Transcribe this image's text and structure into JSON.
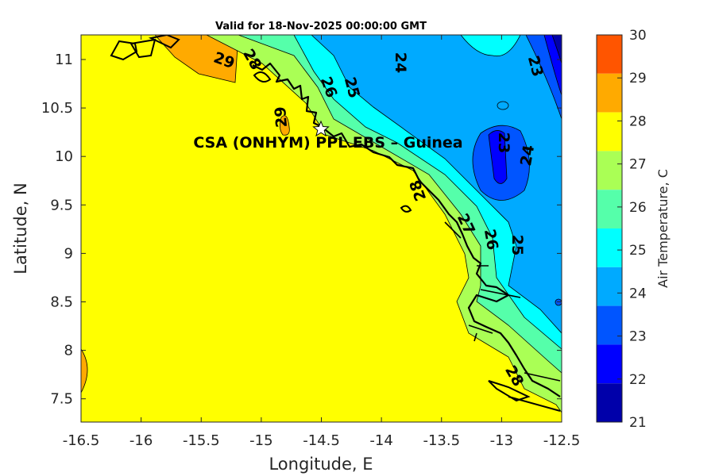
{
  "title": "Valid for 18-Nov-2025 00:00:00 GMT",
  "station_label": "CSA (ONHYM) PPL EBS  – Guinea",
  "chart_data": {
    "type": "heatmap",
    "subtype": "filled-contour-map",
    "title": "Valid for 18-Nov-2025 00:00:00 GMT",
    "xlabel": "Longitude, E",
    "ylabel": "Latitude, N",
    "xlim": [
      -16.5,
      -12.5
    ],
    "ylim": [
      7.26,
      11.25
    ],
    "xticks": [
      "-16.5",
      "-16",
      "-15.5",
      "-15",
      "-14.5",
      "-14",
      "-13.5",
      "-13",
      "-12.5"
    ],
    "yticks": [
      "11",
      "10.5",
      "10",
      "9.5",
      "9",
      "8.5",
      "8",
      "7.5"
    ],
    "colorbar": {
      "label": "Air Temperature, C",
      "range": [
        21,
        30
      ],
      "ticks": [
        "30",
        "29",
        "28",
        "27",
        "26",
        "25",
        "24",
        "23",
        "22",
        "21"
      ],
      "colors": [
        "#ff5500",
        "#ffaa00",
        "#ffff00",
        "#aaff55",
        "#55ffaa",
        "#00ffff",
        "#00aaff",
        "#0055ff",
        "#0000ff",
        "#0000aa"
      ]
    },
    "contour_labels": [
      "29",
      "28",
      "26",
      "25",
      "24",
      "23",
      "29",
      "23",
      "24",
      "28",
      "27",
      "26",
      "25",
      "28"
    ],
    "station": {
      "name": "CSA (ONHYM) PPL EBS  – Guinea",
      "lon": -14.5,
      "lat": 10.28
    }
  }
}
